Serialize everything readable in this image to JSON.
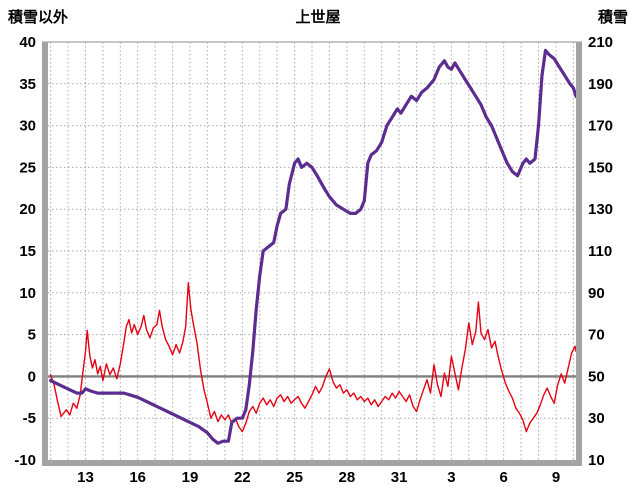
{
  "header": {
    "left_axis_title": "積雪以外",
    "chart_title": "上世屋",
    "right_axis_title": "積雪"
  },
  "chart_data": {
    "type": "line",
    "title": "上世屋",
    "left_axis": {
      "label": "積雪以外",
      "min": -10,
      "max": 40,
      "ticks": [
        40,
        35,
        30,
        25,
        20,
        15,
        10,
        5,
        0,
        -5,
        -10
      ]
    },
    "right_axis": {
      "label": "積雪",
      "min": 10,
      "max": 210,
      "ticks": [
        210,
        190,
        170,
        150,
        130,
        110,
        90,
        70,
        50,
        30,
        10
      ]
    },
    "x_axis": {
      "domain": [
        10.85,
        41.15
      ],
      "minor_grid_step": 1,
      "ticks": [
        {
          "pos": 13,
          "label": "13"
        },
        {
          "pos": 16,
          "label": "16"
        },
        {
          "pos": 19,
          "label": "19"
        },
        {
          "pos": 22,
          "label": "22"
        },
        {
          "pos": 25,
          "label": "25"
        },
        {
          "pos": 28,
          "label": "28"
        },
        {
          "pos": 31,
          "label": "31"
        },
        {
          "pos": 34,
          "label": "3"
        },
        {
          "pos": 37,
          "label": "6"
        },
        {
          "pos": 40,
          "label": "9"
        }
      ]
    },
    "zero_reference": 0,
    "grid": true,
    "colors": {
      "grid": "#a9a9a9",
      "frame": "#a3a3a3",
      "zero_line": "#7f7f7f",
      "temperature": "#e60012",
      "snow": "#5b2d90"
    },
    "series": [
      {
        "id": "temperature",
        "name": "積雪以外",
        "axis": "left",
        "color": "#e60012",
        "width": 1.4,
        "points": [
          [
            11.0,
            0.2
          ],
          [
            11.2,
            -1.0
          ],
          [
            11.4,
            -3.0
          ],
          [
            11.6,
            -4.8
          ],
          [
            11.9,
            -4.0
          ],
          [
            12.1,
            -4.6
          ],
          [
            12.3,
            -3.2
          ],
          [
            12.5,
            -3.8
          ],
          [
            12.7,
            -2.2
          ],
          [
            12.85,
            0.5
          ],
          [
            13.0,
            3.0
          ],
          [
            13.1,
            5.5
          ],
          [
            13.25,
            2.5
          ],
          [
            13.4,
            1.0
          ],
          [
            13.55,
            2.0
          ],
          [
            13.7,
            0.3
          ],
          [
            13.85,
            1.2
          ],
          [
            14.0,
            -0.5
          ],
          [
            14.2,
            1.5
          ],
          [
            14.4,
            0.2
          ],
          [
            14.6,
            1.0
          ],
          [
            14.8,
            -0.3
          ],
          [
            15.0,
            1.5
          ],
          [
            15.2,
            4.0
          ],
          [
            15.35,
            6.0
          ],
          [
            15.5,
            6.8
          ],
          [
            15.65,
            5.2
          ],
          [
            15.8,
            6.2
          ],
          [
            16.0,
            5.0
          ],
          [
            16.2,
            6.0
          ],
          [
            16.35,
            7.3
          ],
          [
            16.5,
            5.6
          ],
          [
            16.7,
            4.6
          ],
          [
            16.9,
            5.8
          ],
          [
            17.1,
            6.2
          ],
          [
            17.25,
            7.9
          ],
          [
            17.4,
            6.0
          ],
          [
            17.6,
            4.4
          ],
          [
            17.8,
            3.6
          ],
          [
            18.0,
            2.6
          ],
          [
            18.2,
            3.8
          ],
          [
            18.4,
            2.8
          ],
          [
            18.6,
            4.2
          ],
          [
            18.75,
            6.0
          ],
          [
            18.9,
            11.2
          ],
          [
            19.05,
            8.0
          ],
          [
            19.2,
            6.2
          ],
          [
            19.4,
            4.0
          ],
          [
            19.6,
            0.8
          ],
          [
            19.8,
            -1.6
          ],
          [
            20.0,
            -3.2
          ],
          [
            20.2,
            -5.0
          ],
          [
            20.4,
            -4.2
          ],
          [
            20.6,
            -5.4
          ],
          [
            20.8,
            -4.6
          ],
          [
            21.0,
            -5.2
          ],
          [
            21.2,
            -4.6
          ],
          [
            21.4,
            -5.6
          ],
          [
            21.6,
            -5.0
          ],
          [
            21.8,
            -6.0
          ],
          [
            22.0,
            -6.6
          ],
          [
            22.2,
            -5.6
          ],
          [
            22.4,
            -4.2
          ],
          [
            22.6,
            -3.6
          ],
          [
            22.8,
            -4.4
          ],
          [
            23.0,
            -3.2
          ],
          [
            23.2,
            -2.6
          ],
          [
            23.4,
            -3.4
          ],
          [
            23.6,
            -2.8
          ],
          [
            23.8,
            -3.6
          ],
          [
            24.0,
            -2.6
          ],
          [
            24.2,
            -2.2
          ],
          [
            24.4,
            -3.0
          ],
          [
            24.6,
            -2.4
          ],
          [
            24.8,
            -3.2
          ],
          [
            25.0,
            -2.8
          ],
          [
            25.2,
            -2.4
          ],
          [
            25.4,
            -3.2
          ],
          [
            25.6,
            -3.8
          ],
          [
            25.8,
            -3.0
          ],
          [
            26.0,
            -2.2
          ],
          [
            26.2,
            -1.2
          ],
          [
            26.4,
            -2.0
          ],
          [
            26.6,
            -1.2
          ],
          [
            26.8,
            0.0
          ],
          [
            27.0,
            0.9
          ],
          [
            27.2,
            -0.6
          ],
          [
            27.4,
            -1.4
          ],
          [
            27.6,
            -1.0
          ],
          [
            27.8,
            -2.0
          ],
          [
            28.0,
            -1.6
          ],
          [
            28.2,
            -2.4
          ],
          [
            28.4,
            -2.0
          ],
          [
            28.6,
            -2.8
          ],
          [
            28.8,
            -2.4
          ],
          [
            29.0,
            -3.0
          ],
          [
            29.2,
            -2.6
          ],
          [
            29.4,
            -3.4
          ],
          [
            29.6,
            -2.8
          ],
          [
            29.8,
            -3.6
          ],
          [
            30.0,
            -3.0
          ],
          [
            30.2,
            -2.4
          ],
          [
            30.4,
            -2.8
          ],
          [
            30.6,
            -2.0
          ],
          [
            30.8,
            -2.6
          ],
          [
            31.0,
            -1.8
          ],
          [
            31.2,
            -2.4
          ],
          [
            31.4,
            -3.0
          ],
          [
            31.6,
            -2.2
          ],
          [
            31.8,
            -3.6
          ],
          [
            32.0,
            -4.2
          ],
          [
            32.2,
            -2.8
          ],
          [
            32.4,
            -1.6
          ],
          [
            32.6,
            -0.4
          ],
          [
            32.8,
            -2.0
          ],
          [
            33.0,
            1.4
          ],
          [
            33.2,
            -1.0
          ],
          [
            33.4,
            -2.4
          ],
          [
            33.6,
            0.4
          ],
          [
            33.8,
            -1.2
          ],
          [
            34.0,
            2.4
          ],
          [
            34.2,
            0.4
          ],
          [
            34.4,
            -1.6
          ],
          [
            34.6,
            1.0
          ],
          [
            34.8,
            3.2
          ],
          [
            35.0,
            6.4
          ],
          [
            35.2,
            3.8
          ],
          [
            35.4,
            5.4
          ],
          [
            35.55,
            8.9
          ],
          [
            35.7,
            5.2
          ],
          [
            35.9,
            4.4
          ],
          [
            36.1,
            5.6
          ],
          [
            36.3,
            3.4
          ],
          [
            36.5,
            4.2
          ],
          [
            36.7,
            2.2
          ],
          [
            36.9,
            0.6
          ],
          [
            37.1,
            -0.8
          ],
          [
            37.3,
            -1.8
          ],
          [
            37.5,
            -2.6
          ],
          [
            37.7,
            -3.8
          ],
          [
            37.9,
            -4.4
          ],
          [
            38.1,
            -5.2
          ],
          [
            38.3,
            -6.6
          ],
          [
            38.5,
            -5.6
          ],
          [
            38.7,
            -5.0
          ],
          [
            38.9,
            -4.4
          ],
          [
            39.1,
            -3.4
          ],
          [
            39.3,
            -2.2
          ],
          [
            39.5,
            -1.4
          ],
          [
            39.7,
            -2.4
          ],
          [
            39.9,
            -3.2
          ],
          [
            40.1,
            -1.0
          ],
          [
            40.3,
            0.3
          ],
          [
            40.5,
            -0.8
          ],
          [
            40.7,
            1.0
          ],
          [
            40.9,
            2.8
          ],
          [
            41.1,
            3.6
          ],
          [
            41.15,
            3.0
          ]
        ]
      },
      {
        "id": "snow",
        "name": "積雪",
        "axis": "right",
        "color": "#5b2d90",
        "width": 3.2,
        "points": [
          [
            11.0,
            48
          ],
          [
            11.5,
            46
          ],
          [
            12.0,
            44
          ],
          [
            12.5,
            42
          ],
          [
            12.8,
            42
          ],
          [
            13.0,
            44
          ],
          [
            13.3,
            43
          ],
          [
            13.7,
            42
          ],
          [
            14.2,
            42
          ],
          [
            14.7,
            42
          ],
          [
            15.2,
            42
          ],
          [
            15.6,
            41
          ],
          [
            16.0,
            40
          ],
          [
            16.5,
            38
          ],
          [
            17.0,
            36
          ],
          [
            17.5,
            34
          ],
          [
            18.0,
            32
          ],
          [
            18.5,
            30
          ],
          [
            19.0,
            28
          ],
          [
            19.5,
            26
          ],
          [
            20.0,
            23
          ],
          [
            20.3,
            20
          ],
          [
            20.6,
            18
          ],
          [
            20.9,
            19
          ],
          [
            21.2,
            19
          ],
          [
            21.4,
            28
          ],
          [
            21.7,
            30
          ],
          [
            22.0,
            30
          ],
          [
            22.2,
            34
          ],
          [
            22.4,
            46
          ],
          [
            22.6,
            62
          ],
          [
            22.8,
            82
          ],
          [
            23.0,
            98
          ],
          [
            23.2,
            110
          ],
          [
            23.5,
            112
          ],
          [
            23.8,
            114
          ],
          [
            24.0,
            122
          ],
          [
            24.2,
            128
          ],
          [
            24.5,
            130
          ],
          [
            24.7,
            142
          ],
          [
            25.0,
            152
          ],
          [
            25.2,
            154
          ],
          [
            25.4,
            150
          ],
          [
            25.7,
            152
          ],
          [
            26.0,
            150
          ],
          [
            26.3,
            146
          ],
          [
            26.7,
            140
          ],
          [
            27.0,
            136
          ],
          [
            27.4,
            132
          ],
          [
            27.8,
            130
          ],
          [
            28.2,
            128
          ],
          [
            28.5,
            128
          ],
          [
            28.8,
            130
          ],
          [
            29.0,
            134
          ],
          [
            29.2,
            152
          ],
          [
            29.4,
            156
          ],
          [
            29.7,
            158
          ],
          [
            30.0,
            162
          ],
          [
            30.3,
            170
          ],
          [
            30.6,
            174
          ],
          [
            30.9,
            178
          ],
          [
            31.1,
            176
          ],
          [
            31.4,
            180
          ],
          [
            31.7,
            184
          ],
          [
            32.0,
            182
          ],
          [
            32.3,
            186
          ],
          [
            32.6,
            188
          ],
          [
            33.0,
            192
          ],
          [
            33.3,
            198
          ],
          [
            33.6,
            201
          ],
          [
            33.8,
            198
          ],
          [
            34.0,
            197
          ],
          [
            34.2,
            200
          ],
          [
            34.5,
            196
          ],
          [
            34.8,
            192
          ],
          [
            35.1,
            188
          ],
          [
            35.4,
            184
          ],
          [
            35.7,
            180
          ],
          [
            36.0,
            174
          ],
          [
            36.3,
            170
          ],
          [
            36.6,
            164
          ],
          [
            36.9,
            158
          ],
          [
            37.2,
            152
          ],
          [
            37.5,
            148
          ],
          [
            37.8,
            146
          ],
          [
            38.1,
            152
          ],
          [
            38.3,
            154
          ],
          [
            38.5,
            152
          ],
          [
            38.8,
            154
          ],
          [
            39.0,
            170
          ],
          [
            39.2,
            194
          ],
          [
            39.4,
            206
          ],
          [
            39.6,
            204
          ],
          [
            39.9,
            202
          ],
          [
            40.2,
            198
          ],
          [
            40.5,
            194
          ],
          [
            40.8,
            190
          ],
          [
            41.0,
            188
          ],
          [
            41.15,
            184
          ]
        ]
      }
    ]
  }
}
